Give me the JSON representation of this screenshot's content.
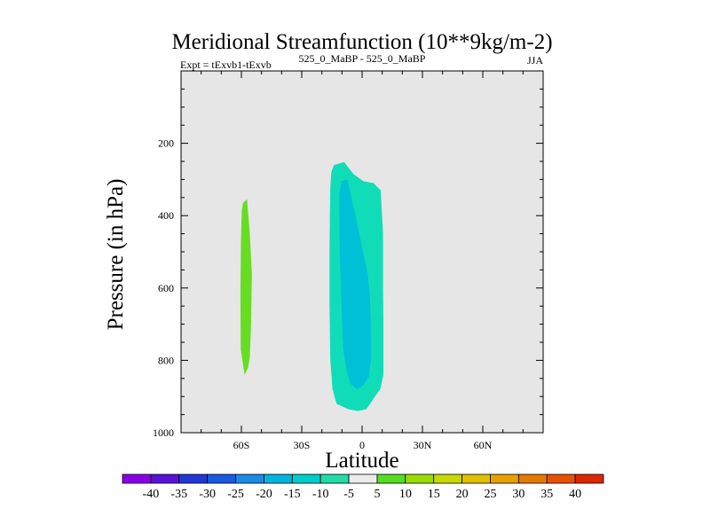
{
  "chart_data": {
    "type": "contour",
    "title": "Meridional Streamfunction (10**9kg/m-2)",
    "left_label": "Expt = tExvb1-tExvb",
    "center_label": "525_0_MaBP - 525_0_MaBP",
    "right_label": "JJA",
    "xlabel": "Latitude",
    "ylabel": "Pressure (in hPa)",
    "xlim": [
      -90,
      90
    ],
    "ylim": [
      1000,
      0
    ],
    "x_ticks": [
      {
        "value": -60,
        "label": "60S"
      },
      {
        "value": -30,
        "label": "30S"
      },
      {
        "value": 0,
        "label": "0"
      },
      {
        "value": 30,
        "label": "30N"
      },
      {
        "value": 60,
        "label": "60N"
      }
    ],
    "y_ticks": [
      {
        "value": 200,
        "label": "200"
      },
      {
        "value": 400,
        "label": "400"
      },
      {
        "value": 600,
        "label": "600"
      },
      {
        "value": 800,
        "label": "800"
      },
      {
        "value": 1000,
        "label": "1000"
      }
    ],
    "background_color": "#e6e6e6",
    "regions": [
      {
        "name": "positive-cell-south",
        "level": "5 to 10",
        "color": "#66dd22",
        "outline": [
          [
            -59.2,
            365
          ],
          [
            -57.2,
            355
          ],
          [
            -55.8,
            450
          ],
          [
            -54.8,
            560
          ],
          [
            -55.2,
            700
          ],
          [
            -55.8,
            790
          ],
          [
            -56.7,
            820
          ],
          [
            -58.4,
            840
          ],
          [
            -60.3,
            770
          ],
          [
            -60.5,
            620
          ],
          [
            -60.2,
            470
          ],
          [
            -59.8,
            385
          ]
        ]
      },
      {
        "name": "negative-cell-outer",
        "level": "-10 to -5",
        "color": "#11dcb8",
        "outline": [
          [
            -14.0,
            260
          ],
          [
            -8.9,
            252
          ],
          [
            -4.3,
            285
          ],
          [
            0.6,
            305
          ],
          [
            5.7,
            310
          ],
          [
            9.2,
            330
          ],
          [
            10.4,
            450
          ],
          [
            10.4,
            600
          ],
          [
            10.6,
            700
          ],
          [
            10.6,
            840
          ],
          [
            9.0,
            880
          ],
          [
            5.8,
            905
          ],
          [
            2.1,
            935
          ],
          [
            -2.2,
            940
          ],
          [
            -6.9,
            935
          ],
          [
            -12.7,
            920
          ],
          [
            -14.7,
            880
          ],
          [
            -15.8,
            800
          ],
          [
            -16.2,
            650
          ],
          [
            -16.2,
            500
          ],
          [
            -16.0,
            400
          ],
          [
            -15.8,
            320
          ],
          [
            -15.3,
            280
          ]
        ]
      },
      {
        "name": "negative-cell-inner",
        "level": "-15 to -10",
        "color": "#00c0d8",
        "outline": [
          [
            -10.3,
            305
          ],
          [
            -7.3,
            300
          ],
          [
            -4.5,
            370
          ],
          [
            -1.7,
            440
          ],
          [
            0.4,
            500
          ],
          [
            2.8,
            560
          ],
          [
            3.8,
            620
          ],
          [
            4.4,
            700
          ],
          [
            4.4,
            800
          ],
          [
            3.4,
            845
          ],
          [
            0.4,
            870
          ],
          [
            -2.6,
            880
          ],
          [
            -5.8,
            865
          ],
          [
            -7.6,
            830
          ],
          [
            -9.4,
            770
          ],
          [
            -10.0,
            690
          ],
          [
            -10.4,
            610
          ],
          [
            -11.1,
            510
          ],
          [
            -11.3,
            400
          ],
          [
            -11.3,
            340
          ]
        ]
      }
    ],
    "colorbar": {
      "levels": [
        "-40",
        "-35",
        "-30",
        "-25",
        "-20",
        "-15",
        "-10",
        "-5",
        "5",
        "10",
        "15",
        "20",
        "25",
        "30",
        "35",
        "40"
      ],
      "colors": [
        "#8a00e6",
        "#5a12d8",
        "#2238d6",
        "#1a5ae0",
        "#1a8ae6",
        "#00b4e0",
        "#00cccc",
        "#22dca6",
        "#ececec",
        "#55dd22",
        "#99dd00",
        "#c8d800",
        "#e0c000",
        "#e8a000",
        "#e67a00",
        "#e65200",
        "#dc2800"
      ]
    }
  }
}
